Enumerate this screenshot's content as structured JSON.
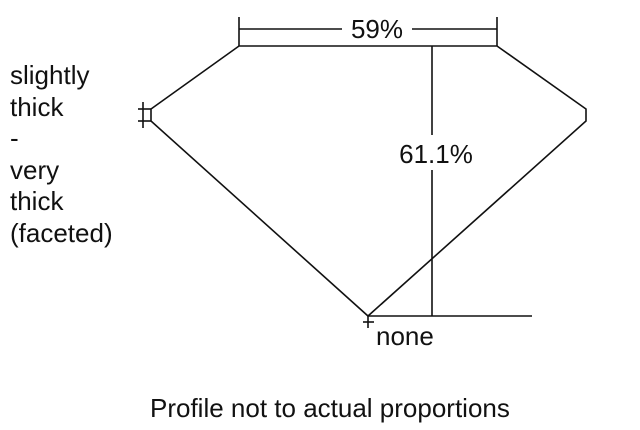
{
  "diagram": {
    "table_percent": "59%",
    "depth_percent": "61.1%",
    "girdle_label": [
      "slightly",
      "thick",
      "-",
      "very",
      "thick",
      "(faceted)"
    ],
    "culet_label": "none",
    "caption": "Profile not to actual proportions"
  }
}
